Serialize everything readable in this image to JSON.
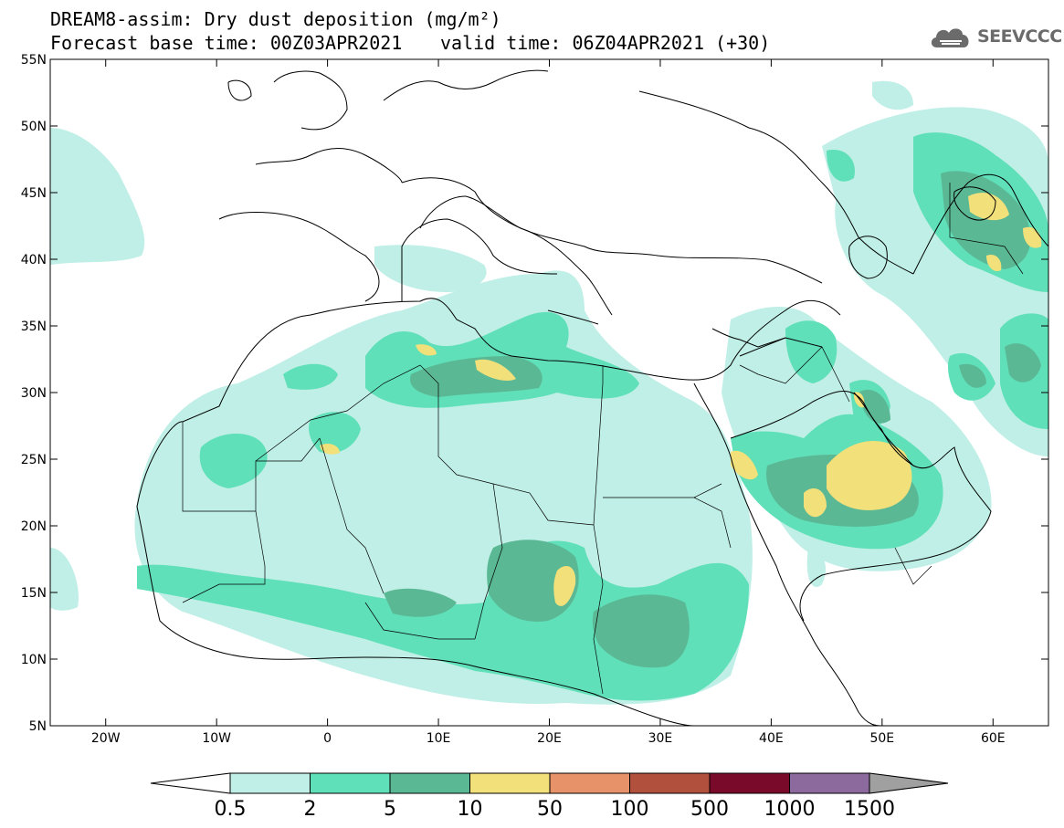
{
  "header": {
    "title_line1": "DREAM8-assim: Dry dust deposition (mg/m²)",
    "title_line2": "Forecast base time: 00Z03APR2021",
    "valid_time": "valid time: 06Z04APR2021 (+30)",
    "logo_text": "SEEVCCC",
    "logo_icon": "cloud-icon"
  },
  "map": {
    "lon_range": [
      -25,
      65
    ],
    "lat_range": [
      5,
      55
    ],
    "lat_ticks": [
      {
        "value": 55,
        "label": "55N"
      },
      {
        "value": 50,
        "label": "50N"
      },
      {
        "value": 45,
        "label": "45N"
      },
      {
        "value": 40,
        "label": "40N"
      },
      {
        "value": 35,
        "label": "35N"
      },
      {
        "value": 30,
        "label": "30N"
      },
      {
        "value": 25,
        "label": "25N"
      },
      {
        "value": 20,
        "label": "20N"
      },
      {
        "value": 15,
        "label": "15N"
      },
      {
        "value": 10,
        "label": "10N"
      },
      {
        "value": 5,
        "label": "5N"
      }
    ],
    "lon_ticks": [
      {
        "value": -20,
        "label": "20W"
      },
      {
        "value": -10,
        "label": "10W"
      },
      {
        "value": 0,
        "label": "0"
      },
      {
        "value": 10,
        "label": "10E"
      },
      {
        "value": 20,
        "label": "20E"
      },
      {
        "value": 30,
        "label": "30E"
      },
      {
        "value": 40,
        "label": "40E"
      },
      {
        "value": 50,
        "label": "50E"
      },
      {
        "value": 60,
        "label": "60E"
      }
    ]
  },
  "colorbar": {
    "labels": [
      "0.5",
      "2",
      "5",
      "10",
      "50",
      "100",
      "500",
      "1000",
      "1500"
    ],
    "colors": [
      "#bfefe6",
      "#5fe0b8",
      "#5bb895",
      "#f2e07a",
      "#e8926a",
      "#b0503d",
      "#7a0a2a",
      "#8c6a9e"
    ],
    "under_color": "#ffffff",
    "over_color": "#a0a0a0"
  }
}
